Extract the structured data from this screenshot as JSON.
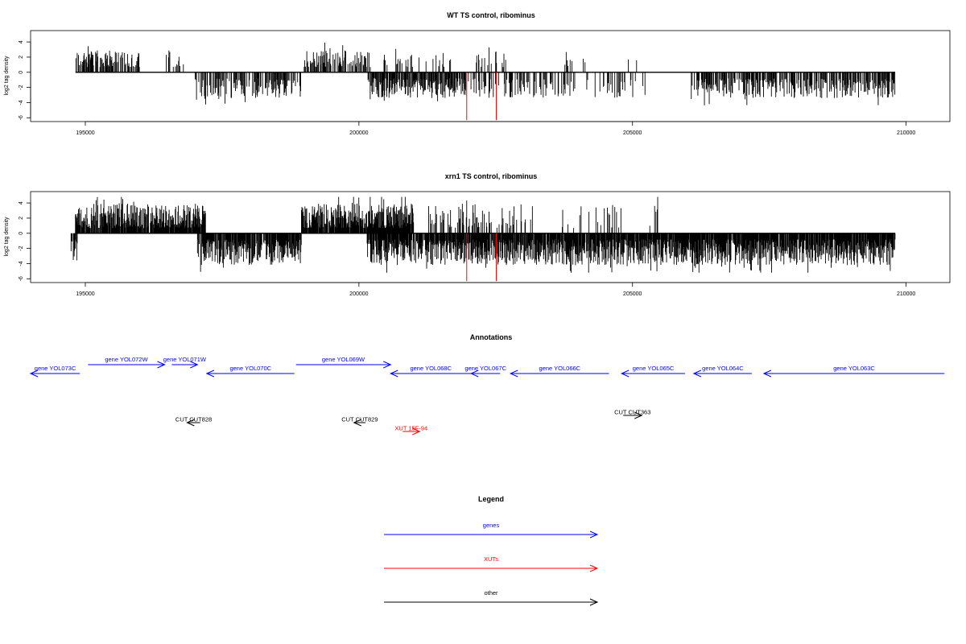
{
  "chart_data": [
    {
      "type": "bar",
      "title": "WT TS control, ribominus",
      "ylabel": "log2 tag density",
      "xlim": [
        194000,
        210800
      ],
      "ylim": [
        -6.5,
        5.5
      ],
      "x_ticks": [
        195000,
        200000,
        205000,
        210000
      ],
      "y_ticks": [
        4,
        2,
        0,
        -2,
        -4,
        -6
      ],
      "grid": false,
      "positive_regions": [
        [
          194820,
          195990,
          0.55
        ],
        [
          196400,
          196820,
          0.2
        ],
        [
          199000,
          200210,
          0.6
        ],
        [
          200450,
          201700,
          0.12
        ],
        [
          202050,
          202700,
          0.25
        ],
        [
          203700,
          204200,
          0.1
        ],
        [
          204850,
          205100,
          0.08
        ]
      ],
      "negative_regions": [
        [
          197000,
          198950,
          0.45
        ],
        [
          200150,
          201950,
          0.75
        ],
        [
          202000,
          203950,
          0.35
        ],
        [
          204100,
          205250,
          0.2
        ],
        [
          206050,
          209800,
          0.55
        ]
      ],
      "highlight_positions": [
        201970,
        202510
      ],
      "highlight_values": [
        -6.3,
        -6.3
      ]
    },
    {
      "type": "bar",
      "title": "xrn1 TS control, ribominus",
      "ylabel": "log2 tag density",
      "xlim": [
        194000,
        210800
      ],
      "ylim": [
        -6.5,
        5.5
      ],
      "x_ticks": [
        195000,
        200000,
        205000,
        210000
      ],
      "y_ticks": [
        4,
        2,
        0,
        -2,
        -4,
        -6
      ],
      "grid": false,
      "positive_regions": [
        [
          194820,
          197200,
          0.9
        ],
        [
          198950,
          201000,
          0.95
        ],
        [
          201250,
          203200,
          0.3
        ],
        [
          203700,
          204800,
          0.2
        ],
        [
          205300,
          205500,
          0.1
        ]
      ],
      "negative_regions": [
        [
          194740,
          194860,
          0.6
        ],
        [
          197050,
          198950,
          0.85
        ],
        [
          200150,
          209800,
          0.9
        ]
      ],
      "highlight_positions": [
        201970,
        202510
      ],
      "highlight_values": [
        -6.3,
        -6.3
      ]
    }
  ],
  "annotations": {
    "title": "Annotations",
    "genes": [
      {
        "label": "gene YOL073C",
        "start": 194000,
        "end": 194900,
        "strand": "-",
        "row": 1,
        "color": "#0000ff"
      },
      {
        "label": "gene YOL072W",
        "start": 195050,
        "end": 196450,
        "strand": "+",
        "row": 0,
        "color": "#0000ff"
      },
      {
        "label": "gene YOL071W",
        "start": 196580,
        "end": 197050,
        "strand": "+",
        "row": 0,
        "color": "#0000ff"
      },
      {
        "label": "gene YOL070C",
        "start": 197220,
        "end": 198820,
        "strand": "-",
        "row": 1,
        "color": "#0000ff"
      },
      {
        "label": "gene YOL069W",
        "start": 198850,
        "end": 200580,
        "strand": "+",
        "row": 0,
        "color": "#0000ff"
      },
      {
        "label": "gene YOL068C",
        "start": 200580,
        "end": 202050,
        "strand": "-",
        "row": 1,
        "color": "#0000ff"
      },
      {
        "label": "gene YOL067C",
        "start": 202050,
        "end": 202580,
        "strand": "-",
        "row": 1,
        "color": "#0000ff"
      },
      {
        "label": "gene YOL066C",
        "start": 202770,
        "end": 204570,
        "strand": "-",
        "row": 1,
        "color": "#0000ff"
      },
      {
        "label": "gene YOL065C",
        "start": 204800,
        "end": 205960,
        "strand": "-",
        "row": 1,
        "color": "#0000ff"
      },
      {
        "label": "gene YOL064C",
        "start": 206120,
        "end": 207180,
        "strand": "-",
        "row": 1,
        "color": "#0000ff"
      },
      {
        "label": "gene YOL063C",
        "start": 207400,
        "end": 210700,
        "strand": "-",
        "row": 1,
        "color": "#0000ff"
      }
    ],
    "features": [
      {
        "label": "CUT CUT828",
        "start": 196860,
        "end": 197100,
        "strand": "-",
        "y": 525,
        "color": "#000000"
      },
      {
        "label": "CUT CUT829",
        "start": 199910,
        "end": 200120,
        "strand": "-",
        "y": 525,
        "color": "#000000"
      },
      {
        "label": "XUT 15F-94",
        "start": 200800,
        "end": 201110,
        "strand": "+",
        "y": 536,
        "color": "#ff0000"
      },
      {
        "label": "CUT CUT363",
        "start": 204830,
        "end": 205170,
        "strand": "+",
        "y": 516,
        "color": "#000000"
      }
    ]
  },
  "legend": {
    "title": "Legend",
    "items": [
      {
        "label": "genes",
        "color": "#0000ff"
      },
      {
        "label": "XUTs",
        "color": "#ff0000"
      },
      {
        "label": "other",
        "color": "#000000"
      }
    ]
  }
}
